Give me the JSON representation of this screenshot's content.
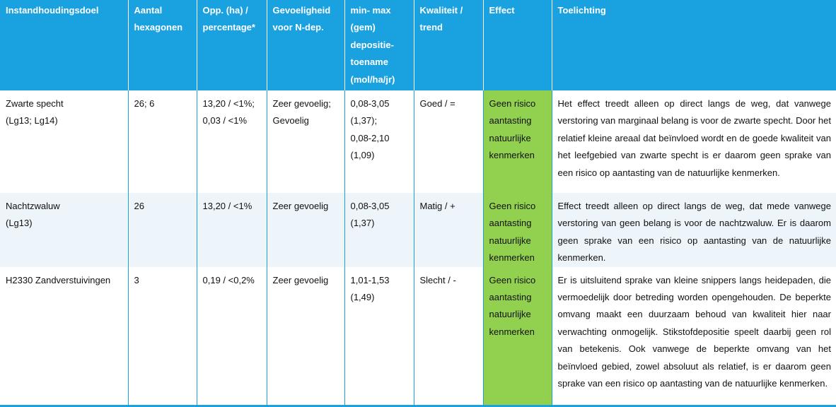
{
  "table": {
    "headers": [
      {
        "lines": [
          "Instandhoudingsdoel"
        ]
      },
      {
        "lines": [
          "Aantal",
          "hexagonen"
        ]
      },
      {
        "lines": [
          "Opp. (ha) /",
          "percentage*"
        ]
      },
      {
        "lines": [
          "Gevoeligheid",
          "voor N-dep."
        ]
      },
      {
        "lines": [
          "min- max",
          "(gem)",
          "depositie-",
          "toename",
          "(mol/ha/jr)"
        ]
      },
      {
        "lines": [
          "Kwaliteit /",
          "trend"
        ]
      },
      {
        "lines": [
          "Effect"
        ]
      },
      {
        "lines": [
          "Toelichting"
        ]
      }
    ],
    "rows": [
      {
        "doel": [
          "Zwarte specht",
          "(Lg13; Lg14)"
        ],
        "hexagonen": [
          "26; 6"
        ],
        "oppervlak": [
          "13,20 / <1%;",
          "0,03 / <1%"
        ],
        "gevoeligheid": [
          "Zeer gevoelig;",
          "Gevoelig"
        ],
        "depositie": [
          "0,08-3,05",
          "(1,37);",
          "0,08-2,10",
          "(1,09)"
        ],
        "kwaliteit": [
          "Goed / ="
        ],
        "effect": [
          "Geen risico",
          "aantasting",
          "natuurlijke",
          "kenmerken"
        ],
        "toelichting": "Het effect treedt alleen op direct langs de weg, dat vanwege verstoring van marginaal belang is voor de zwarte specht. Door het relatief kleine areaal dat beïnvloed wordt en de goede kwaliteit van het leefgebied van zwarte specht is er daarom geen sprake van een risico op aantasting van de natuurlijke kenmerken."
      },
      {
        "doel": [
          "Nachtzwaluw",
          "(Lg13)"
        ],
        "hexagonen": [
          "26"
        ],
        "oppervlak": [
          "13,20 / <1%"
        ],
        "gevoeligheid": [
          "Zeer gevoelig"
        ],
        "depositie": [
          "0,08-3,05",
          "(1,37)"
        ],
        "kwaliteit": [
          "Matig / +"
        ],
        "effect": [
          "Geen risico",
          "aantasting",
          "natuurlijke",
          "kenmerken"
        ],
        "toelichting": "Effect treedt alleen op direct langs de weg, dat mede vanwege verstoring van geen belang is voor de nachtzwaluw. Er is daarom geen sprake van een risico op aantasting van de natuurlijke kenmerken."
      },
      {
        "doel": [
          "H2330 Zandverstuivingen"
        ],
        "hexagonen": [
          "3"
        ],
        "oppervlak": [
          "0,19 / <0,2%"
        ],
        "gevoeligheid": [
          "Zeer gevoelig"
        ],
        "depositie": [
          "1,01-1,53",
          "(1,49)"
        ],
        "kwaliteit": [
          "Slecht / -"
        ],
        "effect": [
          "Geen risico",
          "aantasting",
          "natuurlijke",
          "kenmerken"
        ],
        "toelichting": "Er is uitsluitend sprake van kleine snippers langs heidepaden, die vermoedelijk door betreding worden opengehouden. De beperkte omvang maakt een duurzaam behoud van kwaliteit hier naar verwachting onmogelijk. Stikstofdepositie speelt daarbij geen rol van betekenis. Ook vanwege de beperkte omvang van het beïnvloed gebied, zowel absoluut als relatief, is er daarom geen sprake van een risico op aantasting van de natuurlijke kenmerken."
      }
    ]
  },
  "colors": {
    "header_bg": "#1aa1e0",
    "effect_bg": "#92d050",
    "alt_row_bg": "#edf4fa"
  }
}
